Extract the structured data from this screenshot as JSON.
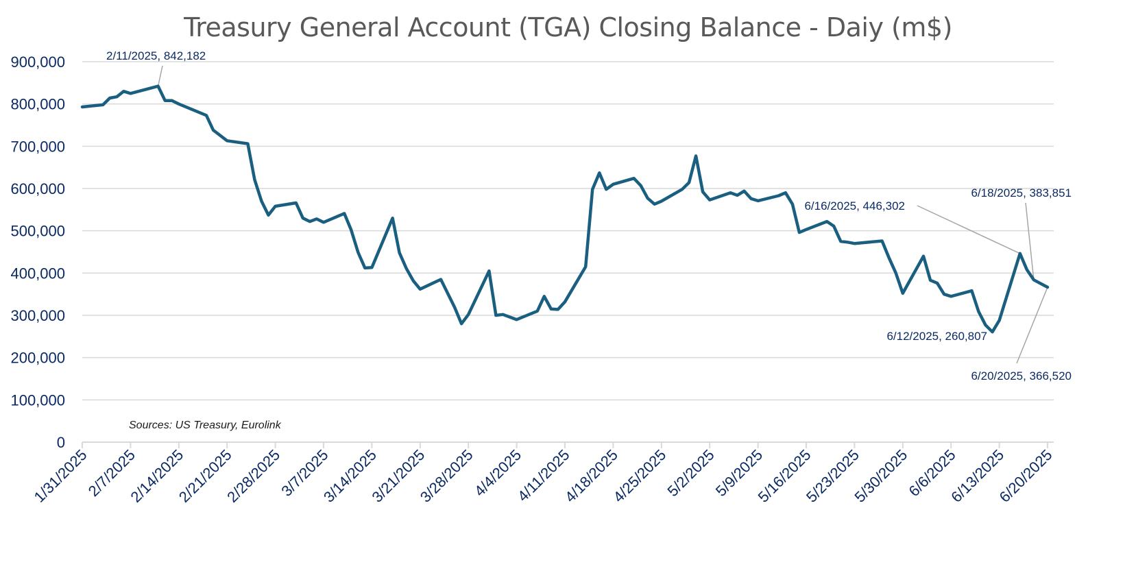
{
  "chart_data": {
    "type": "line",
    "title": "Treasury General Account (TGA) Closing Balance - Daiy  (m$)",
    "xlabel": "",
    "ylabel": "",
    "ylim": [
      0,
      900000
    ],
    "yticks": [
      0,
      100000,
      200000,
      300000,
      400000,
      500000,
      600000,
      700000,
      800000,
      900000
    ],
    "ytick_labels": [
      "0",
      "100,000",
      "200,000",
      "300,000",
      "400,000",
      "500,000",
      "600,000",
      "700,000",
      "800,000",
      "900,000"
    ],
    "xlim": [
      "2025-01-31",
      "2025-06-20"
    ],
    "xtick_labels": [
      "1/31/2025",
      "2/7/2025",
      "2/14/2025",
      "2/21/2025",
      "2/28/2025",
      "3/7/2025",
      "3/14/2025",
      "3/21/2025",
      "3/28/2025",
      "4/4/2025",
      "4/11/2025",
      "4/18/2025",
      "4/25/2025",
      "5/2/2025",
      "5/9/2025",
      "5/16/2025",
      "5/23/2025",
      "5/30/2025",
      "6/6/2025",
      "6/13/2025",
      "6/20/2025"
    ],
    "grid": "horizontal",
    "line_color": "#1a5f80",
    "series": [
      {
        "name": "TGA Closing Balance",
        "points": [
          [
            "2025-01-31",
            793000
          ],
          [
            "2025-02-03",
            798000
          ],
          [
            "2025-02-04",
            814000
          ],
          [
            "2025-02-05",
            817000
          ],
          [
            "2025-02-06",
            830000
          ],
          [
            "2025-02-07",
            825000
          ],
          [
            "2025-02-11",
            842182
          ],
          [
            "2025-02-12",
            808000
          ],
          [
            "2025-02-13",
            808000
          ],
          [
            "2025-02-14",
            800000
          ],
          [
            "2025-02-18",
            773000
          ],
          [
            "2025-02-19",
            738000
          ],
          [
            "2025-02-21",
            713000
          ],
          [
            "2025-02-24",
            706000
          ],
          [
            "2025-02-25",
            621000
          ],
          [
            "2025-02-26",
            570000
          ],
          [
            "2025-02-27",
            537000
          ],
          [
            "2025-02-28",
            558000
          ],
          [
            "2025-03-03",
            566000
          ],
          [
            "2025-03-04",
            530000
          ],
          [
            "2025-03-05",
            522000
          ],
          [
            "2025-03-06",
            528000
          ],
          [
            "2025-03-07",
            520000
          ],
          [
            "2025-03-10",
            541000
          ],
          [
            "2025-03-11",
            502000
          ],
          [
            "2025-03-12",
            449000
          ],
          [
            "2025-03-13",
            412000
          ],
          [
            "2025-03-14",
            413000
          ],
          [
            "2025-03-17",
            530000
          ],
          [
            "2025-03-18",
            448000
          ],
          [
            "2025-03-19",
            411000
          ],
          [
            "2025-03-20",
            382000
          ],
          [
            "2025-03-21",
            362000
          ],
          [
            "2025-03-24",
            385000
          ],
          [
            "2025-03-26",
            319000
          ],
          [
            "2025-03-27",
            280000
          ],
          [
            "2025-03-28",
            302000
          ],
          [
            "2025-03-31",
            405000
          ],
          [
            "2025-04-01",
            300000
          ],
          [
            "2025-04-02",
            302000
          ],
          [
            "2025-04-03",
            296000
          ],
          [
            "2025-04-04",
            290000
          ],
          [
            "2025-04-07",
            310000
          ],
          [
            "2025-04-08",
            345000
          ],
          [
            "2025-04-09",
            315000
          ],
          [
            "2025-04-10",
            314000
          ],
          [
            "2025-04-11",
            332000
          ],
          [
            "2025-04-14",
            415000
          ],
          [
            "2025-04-15",
            598000
          ],
          [
            "2025-04-16",
            637000
          ],
          [
            "2025-04-17",
            598000
          ],
          [
            "2025-04-18",
            610000
          ],
          [
            "2025-04-21",
            624000
          ],
          [
            "2025-04-22",
            607000
          ],
          [
            "2025-04-23",
            577000
          ],
          [
            "2025-04-24",
            563000
          ],
          [
            "2025-04-25",
            570000
          ],
          [
            "2025-04-28",
            598000
          ],
          [
            "2025-04-29",
            614000
          ],
          [
            "2025-04-30",
            677000
          ],
          [
            "2025-05-01",
            592000
          ],
          [
            "2025-05-02",
            573000
          ],
          [
            "2025-05-05",
            590000
          ],
          [
            "2025-05-06",
            584000
          ],
          [
            "2025-05-07",
            594000
          ],
          [
            "2025-05-08",
            576000
          ],
          [
            "2025-05-09",
            571000
          ],
          [
            "2025-05-12",
            583000
          ],
          [
            "2025-05-13",
            590000
          ],
          [
            "2025-05-14",
            563000
          ],
          [
            "2025-05-15",
            496000
          ],
          [
            "2025-05-16",
            503000
          ],
          [
            "2025-05-19",
            522000
          ],
          [
            "2025-05-20",
            511000
          ],
          [
            "2025-05-21",
            475000
          ],
          [
            "2025-05-22",
            473000
          ],
          [
            "2025-05-23",
            470000
          ],
          [
            "2025-05-27",
            476000
          ],
          [
            "2025-05-28",
            436000
          ],
          [
            "2025-05-29",
            400000
          ],
          [
            "2025-05-30",
            352000
          ],
          [
            "2025-06-02",
            440000
          ],
          [
            "2025-06-03",
            383000
          ],
          [
            "2025-06-04",
            376000
          ],
          [
            "2025-06-05",
            350000
          ],
          [
            "2025-06-06",
            345000
          ],
          [
            "2025-06-09",
            358000
          ],
          [
            "2025-06-10",
            309000
          ],
          [
            "2025-06-11",
            277000
          ],
          [
            "2025-06-12",
            260807
          ],
          [
            "2025-06-13",
            288000
          ],
          [
            "2025-06-16",
            446302
          ],
          [
            "2025-06-17",
            408000
          ],
          [
            "2025-06-18",
            383851
          ],
          [
            "2025-06-20",
            366520
          ]
        ]
      }
    ],
    "annotations": [
      {
        "date": "2025-02-11",
        "value": 842182,
        "label": "2/11/2025,  842,182"
      },
      {
        "date": "2025-06-16",
        "value": 446302,
        "label": "6/16/2025,  446,302"
      },
      {
        "date": "2025-06-18",
        "value": 383851,
        "label": "6/18/2025,  383,851"
      },
      {
        "date": "2025-06-12",
        "value": 260807,
        "label": "6/12/2025,  260,807"
      },
      {
        "date": "2025-06-20",
        "value": 366520,
        "label": "6/20/2025,  366,520"
      }
    ],
    "source_note": "Sources: US Treasury, Eurolink"
  }
}
